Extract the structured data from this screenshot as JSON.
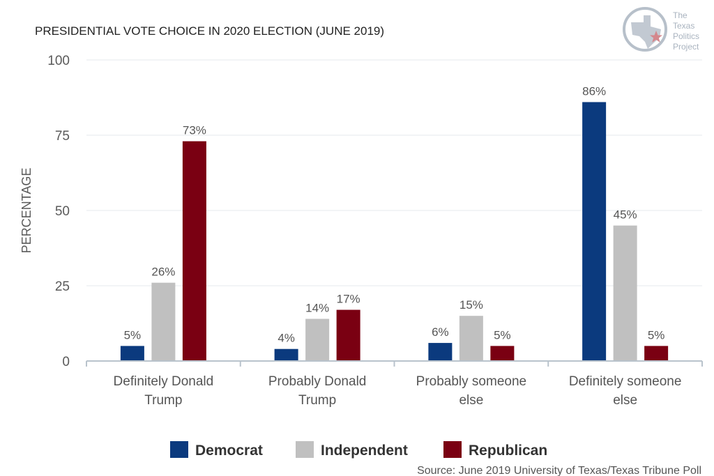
{
  "chart_data": {
    "type": "bar",
    "title": "PRESIDENTIAL VOTE CHOICE IN 2020 ELECTION (JUNE 2019)",
    "ylabel": "PERCENTAGE",
    "xlabel": "",
    "ylim": [
      0,
      100
    ],
    "yticks": [
      0,
      25,
      50,
      75,
      100
    ],
    "grid": true,
    "legend_position": "bottom",
    "categories": [
      [
        "Definitely Donald",
        "Trump"
      ],
      [
        "Probably Donald",
        "Trump"
      ],
      [
        "Probably someone",
        "else"
      ],
      [
        "Definitely someone",
        "else"
      ]
    ],
    "series": [
      {
        "name": "Democrat",
        "color": "#0b3a7e",
        "values": [
          5,
          4,
          6,
          86
        ]
      },
      {
        "name": "Independent",
        "color": "#c0c0c0",
        "values": [
          26,
          14,
          15,
          45
        ]
      },
      {
        "name": "Republican",
        "color": "#7a0012",
        "values": [
          73,
          17,
          5,
          5
        ]
      }
    ],
    "value_suffix": "%"
  },
  "source": "Source: June 2019 University of Texas/Texas Tribune Poll",
  "logo": {
    "lines": [
      "The",
      "Texas",
      "Politics",
      "Project"
    ],
    "icon": "texas-star-logo-icon"
  },
  "colors": {
    "grid": "#e4e8ec",
    "axis": "#b9c3cc",
    "logo": "#b7c0ca",
    "star": "#d4878d"
  }
}
